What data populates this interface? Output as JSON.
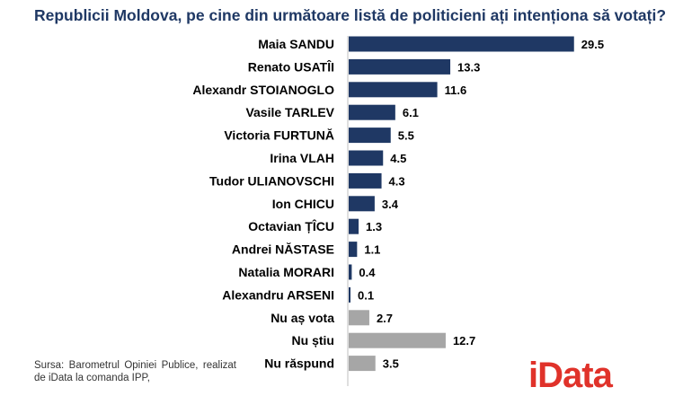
{
  "chart_data": {
    "type": "bar",
    "orientation": "horizontal",
    "title": "Republicii Moldova, pe cine din următoare listă de politicieni ați intenționa să votați?",
    "categories": [
      "Maia SANDU",
      "Renato USATÎI",
      "Alexandr STOIANOGLO",
      "Vasile TARLEV",
      "Victoria FURTUNĂ",
      "Irina VLAH",
      "Tudor ULIANOVSCHI",
      "Ion CHICU",
      "Octavian ȚÎCU",
      "Andrei NĂSTASE",
      "Natalia MORARI",
      "Alexandru ARSENI",
      "Nu aș vota",
      "Nu știu",
      "Nu răspund"
    ],
    "values": [
      29.5,
      13.3,
      11.6,
      6.1,
      5.5,
      4.5,
      4.3,
      3.4,
      1.3,
      1.1,
      0.4,
      0.1,
      2.7,
      12.7,
      3.5
    ],
    "value_labels": [
      "29.5",
      "13.3",
      "11.6",
      "6.1",
      "5.5",
      "4.5",
      "4.3",
      "3.4",
      "1.3",
      "1.1",
      "0.4",
      "0.1",
      "2.7",
      "12.7",
      "3.5"
    ],
    "bar_colors": [
      "#1f3864",
      "#1f3864",
      "#1f3864",
      "#1f3864",
      "#1f3864",
      "#1f3864",
      "#1f3864",
      "#1f3864",
      "#1f3864",
      "#1f3864",
      "#1f3864",
      "#1f3864",
      "#a6a6a6",
      "#a6a6a6",
      "#a6a6a6"
    ],
    "xlabel": "",
    "ylabel": "",
    "grid": false,
    "legend": "none"
  },
  "source": "Sursa: Barometrul Opiniei Publice, realizat de iData la comanda IPP,",
  "logo": "iData",
  "colors": {
    "title": "#1f3864",
    "logo": "#e0322a"
  }
}
